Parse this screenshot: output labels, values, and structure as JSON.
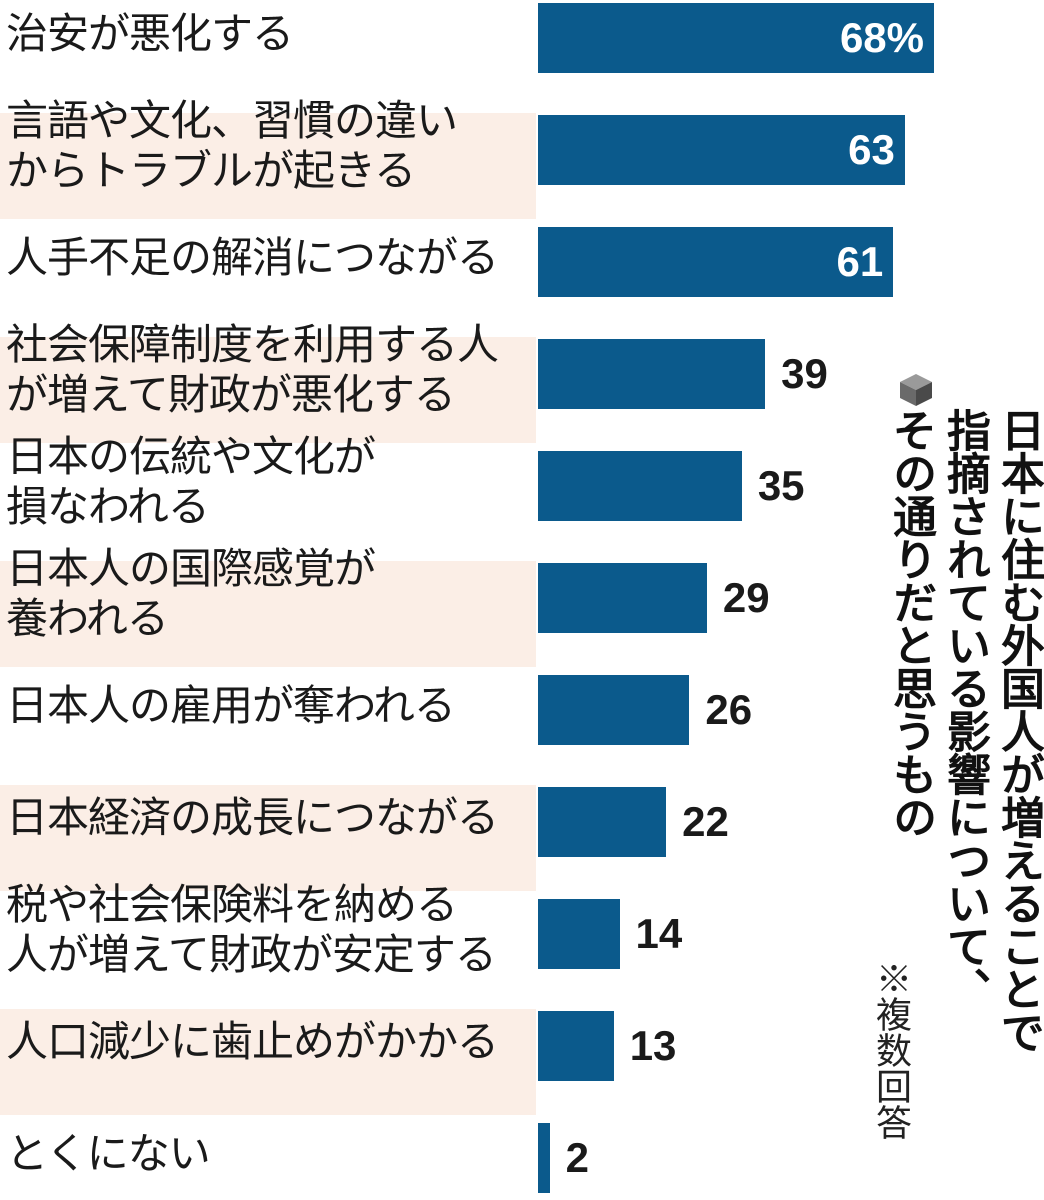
{
  "colors": {
    "bar": "#0b5a8c",
    "row_highlight": "#fbeee6",
    "text": "#1a1a1a"
  },
  "title_icon": "cube-icon",
  "title_lines": [
    "日本に住む外国人が増えることで",
    "指摘されている影響について、",
    "その通りだと思うもの"
  ],
  "note": "※複数回答",
  "chart_data": {
    "type": "bar",
    "orientation": "horizontal",
    "title": "日本に住む外国人が増えることで指摘されている影響について、その通りだと思うもの",
    "unit": "%",
    "categories": [
      "治安が悪化する",
      "言語や文化、習慣の違い\nからトラブルが起きる",
      "人手不足の解消につながる",
      "社会保障制度を利用する人\nが増えて財政が悪化する",
      "日本の伝統や文化が\n損なわれる",
      "日本人の国際感覚が\n養われる",
      "日本人の雇用が奪われる",
      "日本経済の成長につながる",
      "税や社会保険料を納める\n人が増えて財政が安定する",
      "人口減少に歯止めがかかる",
      "とくにない"
    ],
    "values": [
      68,
      63,
      61,
      39,
      35,
      29,
      26,
      22,
      14,
      13,
      2
    ],
    "value_labels": [
      "68%",
      "63",
      "61",
      "39",
      "35",
      "29",
      "26",
      "22",
      "14",
      "13",
      "2"
    ],
    "highlighted": [
      false,
      true,
      false,
      true,
      false,
      true,
      false,
      true,
      false,
      true,
      false
    ],
    "xlim": [
      0,
      68
    ]
  }
}
